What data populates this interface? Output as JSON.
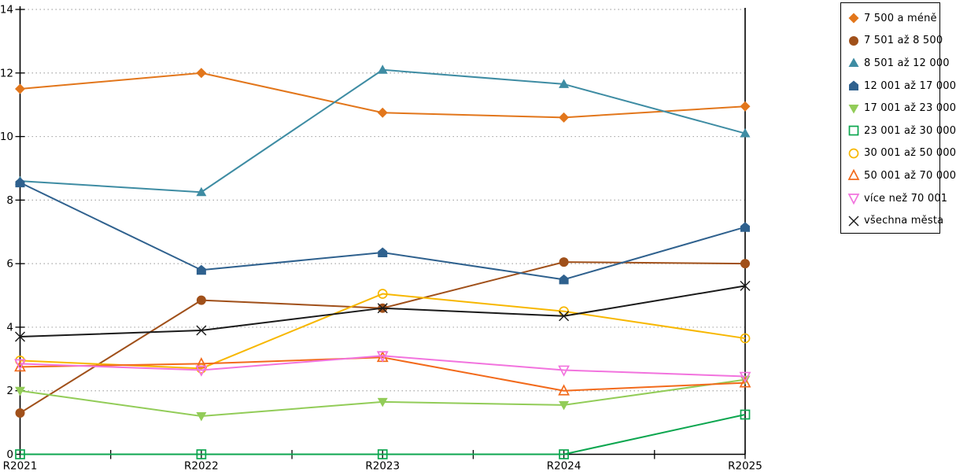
{
  "chart_data": {
    "type": "line",
    "title": "",
    "xlabel": "",
    "ylabel": "",
    "categories": [
      "R2021",
      "R2022",
      "R2023",
      "R2024",
      "R2025"
    ],
    "series": [
      {
        "name": "7 500 a méně",
        "color": "#E2761B",
        "marker": "diamond-filled",
        "values": [
          11.5,
          12.0,
          10.75,
          10.6,
          10.95
        ]
      },
      {
        "name": "7 501 až 8 500",
        "color": "#A0501A",
        "marker": "circle-filled",
        "values": [
          1.3,
          4.85,
          4.6,
          6.05,
          6.0
        ]
      },
      {
        "name": "8 501 až 12 000",
        "color": "#3E8CA3",
        "marker": "triangle-up-filled",
        "values": [
          8.6,
          8.25,
          12.1,
          11.65,
          10.1
        ]
      },
      {
        "name": "12 001 až 17 000",
        "color": "#2F618E",
        "marker": "pentagon-filled",
        "values": [
          8.55,
          5.8,
          6.35,
          5.5,
          7.15
        ]
      },
      {
        "name": "17 001 až 23 000",
        "color": "#92CC58",
        "marker": "triangle-down-filled",
        "values": [
          2.0,
          1.2,
          1.65,
          1.55,
          2.35
        ]
      },
      {
        "name": "23 001 až 30 000",
        "color": "#0CA64F",
        "marker": "square-open",
        "values": [
          0,
          0,
          0,
          0,
          1.25
        ]
      },
      {
        "name": "30 001 až 50 000",
        "color": "#F7B700",
        "marker": "circle-open",
        "values": [
          2.95,
          2.7,
          5.05,
          4.5,
          3.65
        ]
      },
      {
        "name": "50 001 až 70 000",
        "color": "#F26A1B",
        "marker": "triangle-up-open",
        "values": [
          2.75,
          2.85,
          3.05,
          2.0,
          2.25
        ]
      },
      {
        "name": "více než 70 001",
        "color": "#F273DE",
        "marker": "triangle-down-open",
        "values": [
          2.85,
          2.65,
          3.1,
          2.65,
          2.45
        ]
      },
      {
        "name": "všechna města",
        "color": "#1A1A1A",
        "marker": "x-cross",
        "values": [
          3.7,
          3.9,
          4.6,
          4.35,
          5.3
        ]
      }
    ],
    "ylim": [
      0,
      14
    ],
    "ytick_step": 2,
    "ytick_labels": [
      "0",
      "2",
      "4",
      "6",
      "8",
      "10",
      "12",
      "14"
    ],
    "grid": "horizontal-dotted",
    "legend_position": "outside-right-top"
  },
  "colors": {
    "background": "#FFFFFF",
    "axis": "#000000",
    "gridline": "#A9A9A9",
    "legend_border": "#000000"
  }
}
